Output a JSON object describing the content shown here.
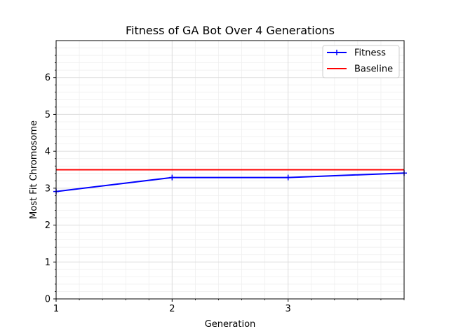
{
  "chart_data": {
    "type": "line",
    "title": "Fitness of GA Bot Over 4 Generations",
    "xlabel": "Generation",
    "ylabel": "Most Fit Chromosome",
    "xlim": [
      1,
      4
    ],
    "ylim": [
      0,
      7
    ],
    "xticks": [
      1,
      2,
      3
    ],
    "xtick_labels": [
      "1",
      "2",
      "3"
    ],
    "yticks": [
      0,
      1,
      2,
      3,
      4,
      5,
      6
    ],
    "ytick_labels": [
      "0",
      "1",
      "2",
      "3",
      "4",
      "5",
      "6"
    ],
    "grid": true,
    "minor_grid": true,
    "legend_position": "top-right",
    "series": [
      {
        "name": "Fitness",
        "color": "#0000ff",
        "marker": "+",
        "x": [
          1,
          2,
          3,
          4
        ],
        "y": [
          2.91,
          3.29,
          3.29,
          3.41
        ]
      },
      {
        "name": "Baseline",
        "color": "#ff0000",
        "marker": "none",
        "x": [
          1,
          4
        ],
        "y": [
          3.5,
          3.5
        ]
      }
    ]
  }
}
